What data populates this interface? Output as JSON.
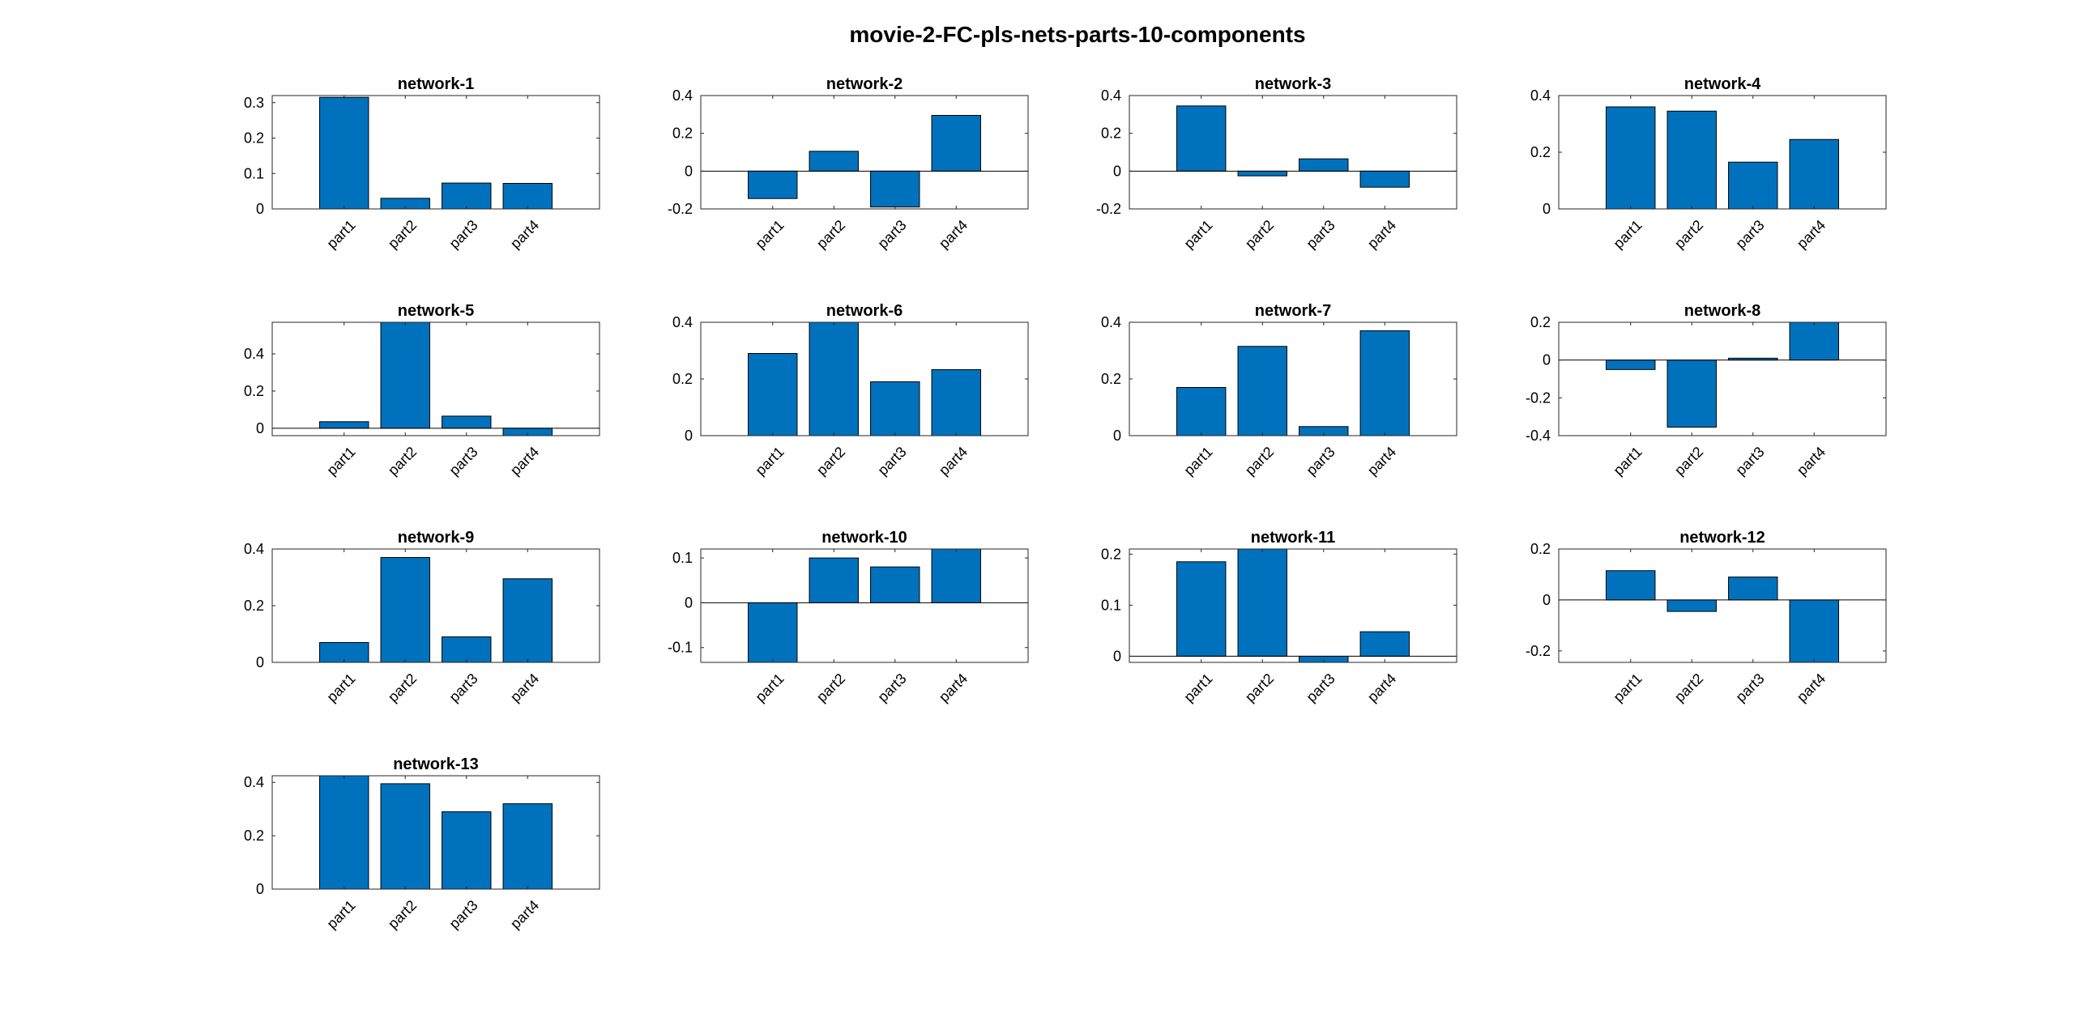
{
  "figure_title": "movie-2-FC-pls-nets-parts-10-components",
  "colors": {
    "bar": "#0072BD",
    "axis": "#262626"
  },
  "chart_data": [
    {
      "type": "bar",
      "title": "network-1",
      "categories": [
        "part1",
        "part2",
        "part3",
        "part4"
      ],
      "values": [
        0.315,
        0.03,
        0.073,
        0.072
      ],
      "ylim": [
        0,
        0.32
      ],
      "yticks": [
        0,
        0.1,
        0.2,
        0.3
      ],
      "ytick_labels": [
        "0",
        "0.1",
        "0.2",
        "0.3"
      ]
    },
    {
      "type": "bar",
      "title": "network-2",
      "categories": [
        "part1",
        "part2",
        "part3",
        "part4"
      ],
      "values": [
        -0.145,
        0.105,
        -0.19,
        0.295
      ],
      "ylim": [
        -0.2,
        0.4
      ],
      "yticks": [
        -0.2,
        0,
        0.2,
        0.4
      ],
      "ytick_labels": [
        "-0.2",
        "0",
        "0.2",
        "0.4"
      ]
    },
    {
      "type": "bar",
      "title": "network-3",
      "categories": [
        "part1",
        "part2",
        "part3",
        "part4"
      ],
      "values": [
        0.345,
        -0.025,
        0.065,
        -0.085
      ],
      "ylim": [
        -0.2,
        0.4
      ],
      "yticks": [
        -0.2,
        0,
        0.2,
        0.4
      ],
      "ytick_labels": [
        "-0.2",
        "0",
        "0.2",
        "0.4"
      ]
    },
    {
      "type": "bar",
      "title": "network-4",
      "categories": [
        "part1",
        "part2",
        "part3",
        "part4"
      ],
      "values": [
        0.36,
        0.345,
        0.165,
        0.245
      ],
      "ylim": [
        0,
        0.4
      ],
      "yticks": [
        0,
        0.2,
        0.4
      ],
      "ytick_labels": [
        "0",
        "0.2",
        "0.4"
      ]
    },
    {
      "type": "bar",
      "title": "network-5",
      "categories": [
        "part1",
        "part2",
        "part3",
        "part4"
      ],
      "values": [
        0.035,
        0.57,
        0.065,
        -0.04
      ],
      "ylim": [
        -0.04,
        0.57
      ],
      "yticks": [
        0,
        0.2,
        0.4
      ],
      "ytick_labels": [
        "0",
        "0.2",
        "0.4"
      ]
    },
    {
      "type": "bar",
      "title": "network-6",
      "categories": [
        "part1",
        "part2",
        "part3",
        "part4"
      ],
      "values": [
        0.29,
        0.4,
        0.19,
        0.233
      ],
      "ylim": [
        0,
        0.4
      ],
      "yticks": [
        0,
        0.2,
        0.4
      ],
      "ytick_labels": [
        "0",
        "0.2",
        "0.4"
      ]
    },
    {
      "type": "bar",
      "title": "network-7",
      "categories": [
        "part1",
        "part2",
        "part3",
        "part4"
      ],
      "values": [
        0.17,
        0.315,
        0.032,
        0.37
      ],
      "ylim": [
        0,
        0.4
      ],
      "yticks": [
        0,
        0.2,
        0.4
      ],
      "ytick_labels": [
        "0",
        "0.2",
        "0.4"
      ]
    },
    {
      "type": "bar",
      "title": "network-8",
      "categories": [
        "part1",
        "part2",
        "part3",
        "part4"
      ],
      "values": [
        -0.05,
        -0.355,
        0.01,
        0.2
      ],
      "ylim": [
        -0.4,
        0.2
      ],
      "yticks": [
        -0.4,
        -0.2,
        0,
        0.2
      ],
      "ytick_labels": [
        "-0.4",
        "-0.2",
        "0",
        "0.2"
      ]
    },
    {
      "type": "bar",
      "title": "network-9",
      "categories": [
        "part1",
        "part2",
        "part3",
        "part4"
      ],
      "values": [
        0.07,
        0.37,
        0.09,
        0.295
      ],
      "ylim": [
        0,
        0.4
      ],
      "yticks": [
        0,
        0.2,
        0.4
      ],
      "ytick_labels": [
        "0",
        "0.2",
        "0.4"
      ]
    },
    {
      "type": "bar",
      "title": "network-10",
      "categories": [
        "part1",
        "part2",
        "part3",
        "part4"
      ],
      "values": [
        -0.133,
        0.1,
        0.08,
        0.12
      ],
      "ylim": [
        -0.133,
        0.12
      ],
      "yticks": [
        -0.1,
        0,
        0.1
      ],
      "ytick_labels": [
        "-0.1",
        "0",
        "0.1"
      ]
    },
    {
      "type": "bar",
      "title": "network-11",
      "categories": [
        "part1",
        "part2",
        "part3",
        "part4"
      ],
      "values": [
        0.185,
        0.21,
        -0.012,
        0.048
      ],
      "ylim": [
        -0.012,
        0.21
      ],
      "yticks": [
        0,
        0.1,
        0.2
      ],
      "ytick_labels": [
        "0",
        "0.1",
        "0.2"
      ]
    },
    {
      "type": "bar",
      "title": "network-12",
      "categories": [
        "part1",
        "part2",
        "part3",
        "part4"
      ],
      "values": [
        0.115,
        -0.045,
        0.09,
        -0.245
      ],
      "ylim": [
        -0.245,
        0.2
      ],
      "yticks": [
        -0.2,
        0,
        0.2
      ],
      "ytick_labels": [
        "-0.2",
        "0",
        "0.2"
      ]
    },
    {
      "type": "bar",
      "title": "network-13",
      "categories": [
        "part1",
        "part2",
        "part3",
        "part4"
      ],
      "values": [
        0.425,
        0.395,
        0.29,
        0.32
      ],
      "ylim": [
        0,
        0.425
      ],
      "yticks": [
        0,
        0.2,
        0.4
      ],
      "ytick_labels": [
        "0",
        "0.2",
        "0.4"
      ]
    }
  ]
}
